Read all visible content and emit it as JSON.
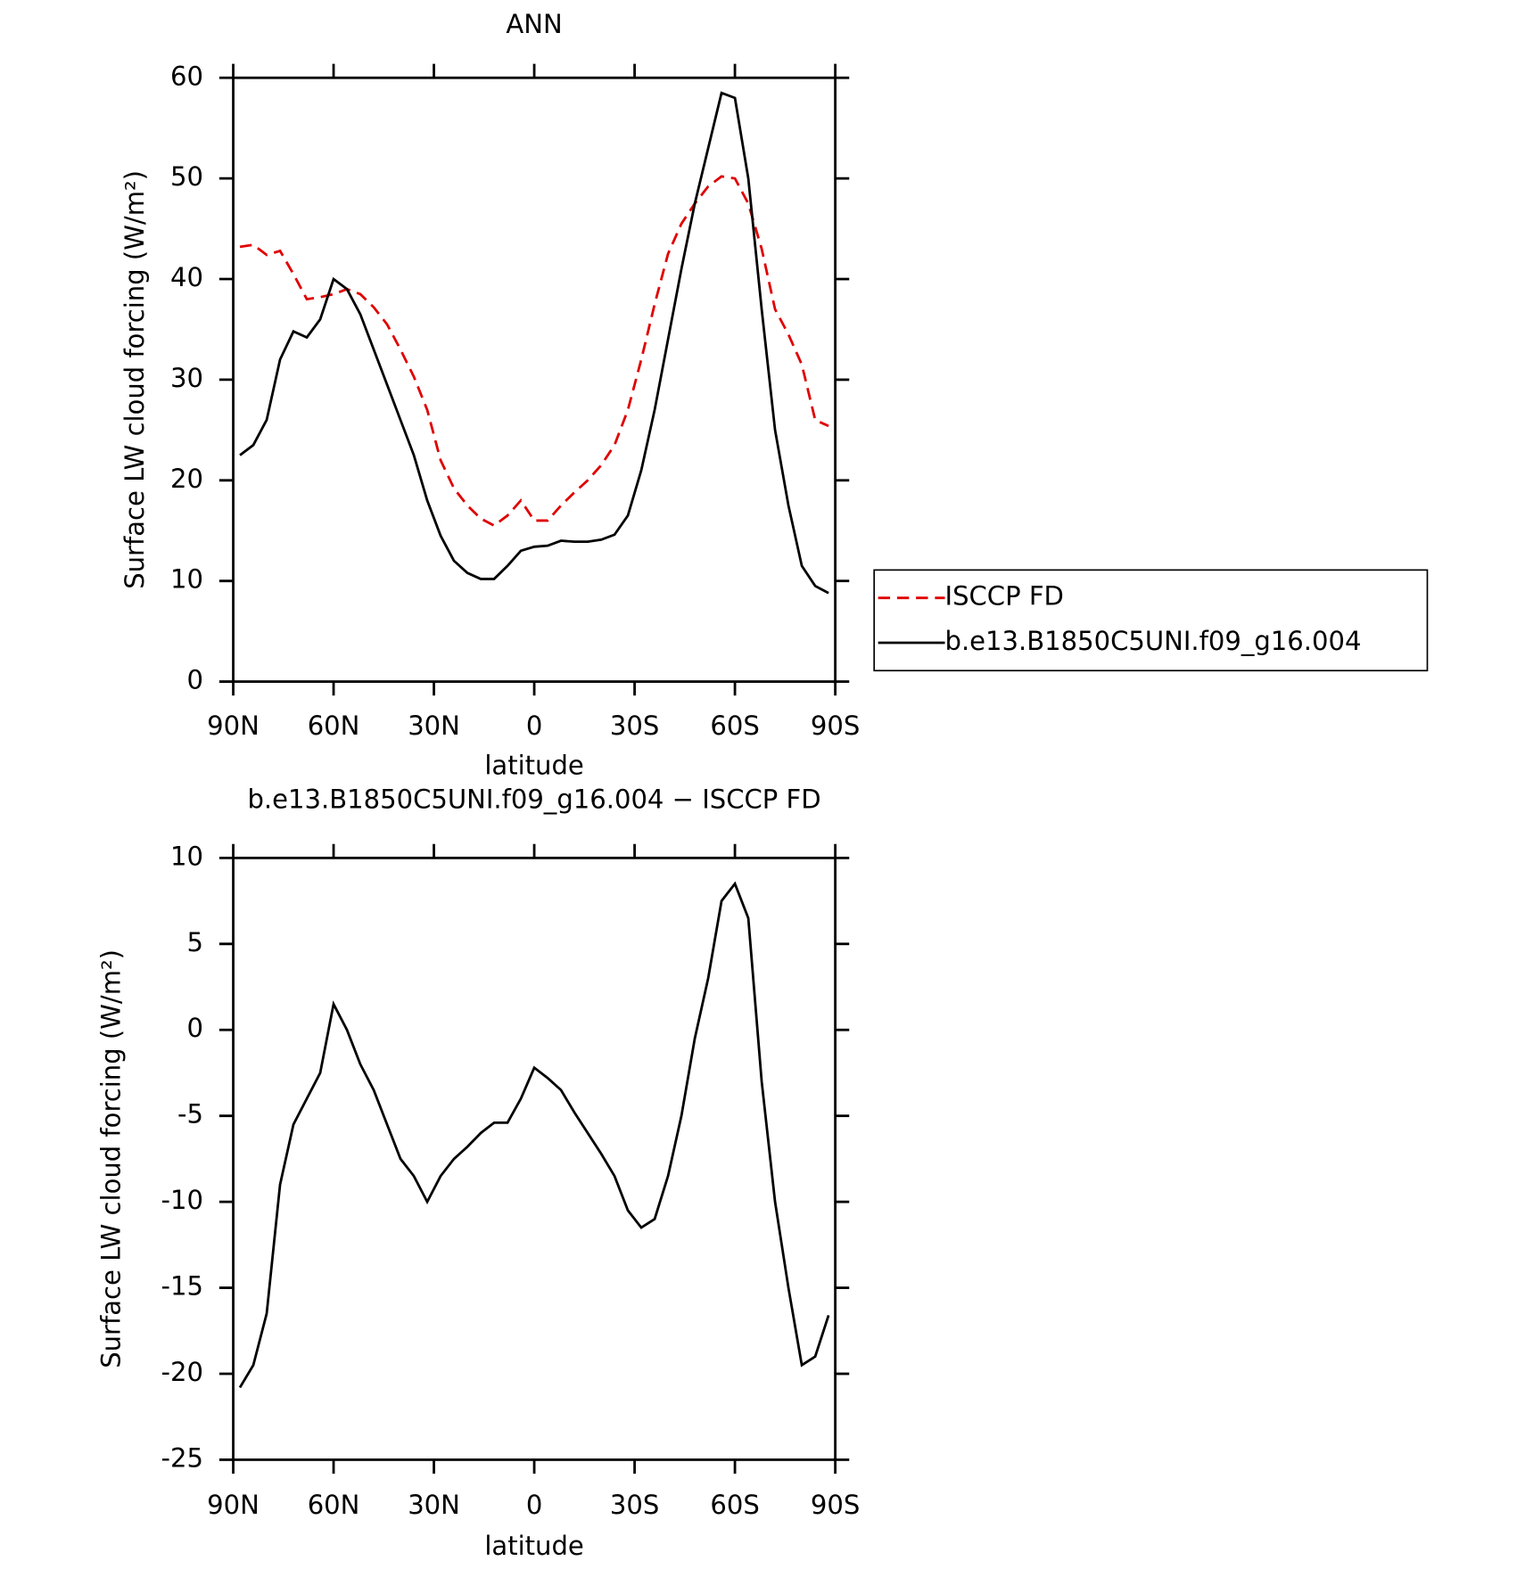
{
  "chart_data": [
    {
      "type": "line",
      "title": "ANN",
      "xlabel": "latitude",
      "ylabel": "Surface LW cloud forcing (W/m²)",
      "x": [
        88,
        84,
        80,
        76,
        72,
        68,
        64,
        60,
        56,
        52,
        48,
        44,
        40,
        36,
        32,
        28,
        24,
        20,
        16,
        12,
        8,
        4,
        0,
        -4,
        -8,
        -12,
        -16,
        -20,
        -24,
        -28,
        -32,
        -36,
        -40,
        -44,
        -48,
        -52,
        -56,
        -60,
        -64,
        -68,
        -72,
        -76,
        -80,
        -84,
        -88
      ],
      "xlim": [
        90,
        -90
      ],
      "xticks": [
        {
          "value": 90,
          "label": "90N"
        },
        {
          "value": 60,
          "label": "60N"
        },
        {
          "value": 30,
          "label": "30N"
        },
        0,
        {
          "value": -30,
          "label": "30S"
        },
        {
          "value": -60,
          "label": "60S"
        },
        {
          "value": -90,
          "label": "90S"
        }
      ],
      "ylim": [
        0,
        60
      ],
      "yticks": [
        0,
        10,
        20,
        30,
        40,
        50,
        60
      ],
      "legend": "right",
      "series": [
        {
          "name": "ISCCP FD",
          "color": "#e00000",
          "dash": true,
          "values": [
            43.2,
            43.4,
            42.4,
            42.8,
            40.5,
            38,
            38.2,
            38.5,
            39,
            38.5,
            37.2,
            35.5,
            33,
            30.3,
            27,
            22,
            19.2,
            17.5,
            16.2,
            15.5,
            16.5,
            18,
            16,
            16,
            17.5,
            18.8,
            20,
            21.5,
            23.5,
            27,
            32,
            37.5,
            42.5,
            45.5,
            47.5,
            49.2,
            50.2,
            50,
            47.5,
            43,
            37,
            34.5,
            31.5,
            26,
            25.4
          ]
        },
        {
          "name": "b.e13.B1850C5UNI.f09_g16.004",
          "color": "#000000",
          "dash": false,
          "values": [
            22.5,
            23.5,
            26,
            32,
            34.8,
            34.2,
            36,
            40,
            39,
            36.5,
            33,
            29.5,
            26,
            22.5,
            18,
            14.5,
            12,
            10.8,
            10.2,
            10.2,
            11.5,
            13,
            13.4,
            13.5,
            14,
            13.9,
            13.9,
            14.1,
            14.6,
            16.5,
            21,
            27,
            34,
            41,
            47.5,
            53,
            58.5,
            58,
            50,
            37,
            25,
            17.5,
            11.5,
            9.5,
            8.8
          ]
        }
      ]
    },
    {
      "type": "line",
      "title": "b.e13.B1850C5UNI.f09_g16.004 − ISCCP FD",
      "xlabel": "latitude",
      "ylabel": "Surface LW cloud forcing (W/m²)",
      "x": [
        88,
        84,
        80,
        76,
        72,
        68,
        64,
        60,
        56,
        52,
        48,
        44,
        40,
        36,
        32,
        28,
        24,
        20,
        16,
        12,
        8,
        4,
        0,
        -4,
        -8,
        -12,
        -16,
        -20,
        -24,
        -28,
        -32,
        -36,
        -40,
        -44,
        -48,
        -52,
        -56,
        -60,
        -64,
        -68,
        -72,
        -76,
        -80,
        -84,
        -88
      ],
      "xlim": [
        90,
        -90
      ],
      "xticks": [
        {
          "value": 90,
          "label": "90N"
        },
        {
          "value": 60,
          "label": "60N"
        },
        {
          "value": 30,
          "label": "30N"
        },
        0,
        {
          "value": -30,
          "label": "30S"
        },
        {
          "value": -60,
          "label": "60S"
        },
        {
          "value": -90,
          "label": "90S"
        }
      ],
      "ylim": [
        -25,
        10
      ],
      "yticks": [
        -25,
        -20,
        -15,
        -10,
        -5,
        0,
        5,
        10
      ],
      "color": "#000000",
      "values": [
        -20.8,
        -19.5,
        -16.5,
        -9,
        -5.5,
        -4,
        -2.5,
        1.5,
        0,
        -2,
        -3.5,
        -5.5,
        -7.5,
        -8.5,
        -10,
        -8.5,
        -7.5,
        -6.8,
        -6,
        -5.4,
        -5.4,
        -4,
        -2.2,
        -2.8,
        -3.5,
        -4.8,
        -6,
        -7.2,
        -8.5,
        -10.5,
        -11.5,
        -11,
        -8.5,
        -5,
        -0.5,
        3,
        7.5,
        8.5,
        6.5,
        -3,
        -10,
        -15,
        -19.5,
        -19,
        -16.6
      ]
    }
  ]
}
